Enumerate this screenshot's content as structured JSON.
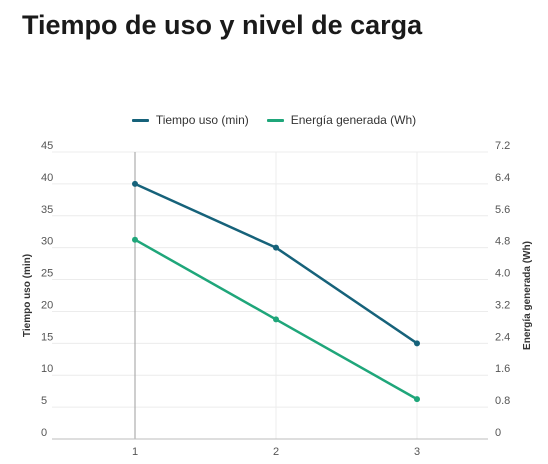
{
  "title": "Tiempo de uso y nivel de carga",
  "colors": {
    "tiempo": "#16627a",
    "energia": "#1fa67a",
    "grid": "#ececec",
    "axis": "#bdbdbd"
  },
  "chart_data": {
    "type": "line",
    "x": [
      1,
      2,
      3
    ],
    "x_tick_labels": [
      "1",
      "2",
      "3"
    ],
    "series": [
      {
        "name": "Tiempo uso (min)",
        "axis": "left",
        "values": [
          40,
          30,
          15
        ]
      },
      {
        "name": "Energía generada (Wh)",
        "axis": "right",
        "values": [
          5.0,
          3.0,
          1.0
        ]
      }
    ],
    "ylabel_left": "Tiempo uso (min)",
    "ylabel_right": "Energía generada (Wh)",
    "ylim_left": [
      0,
      45
    ],
    "ylim_right": [
      0,
      7.2
    ],
    "y_ticks_left": [
      "0",
      "5",
      "10",
      "15",
      "20",
      "25",
      "30",
      "35",
      "40",
      "45"
    ],
    "y_ticks_right": [
      "0",
      "0.8",
      "1.6",
      "2.4",
      "3.2",
      "4.0",
      "4.8",
      "5.6",
      "6.4",
      "7.2"
    ],
    "grid": true,
    "legend_position": "top-center"
  }
}
